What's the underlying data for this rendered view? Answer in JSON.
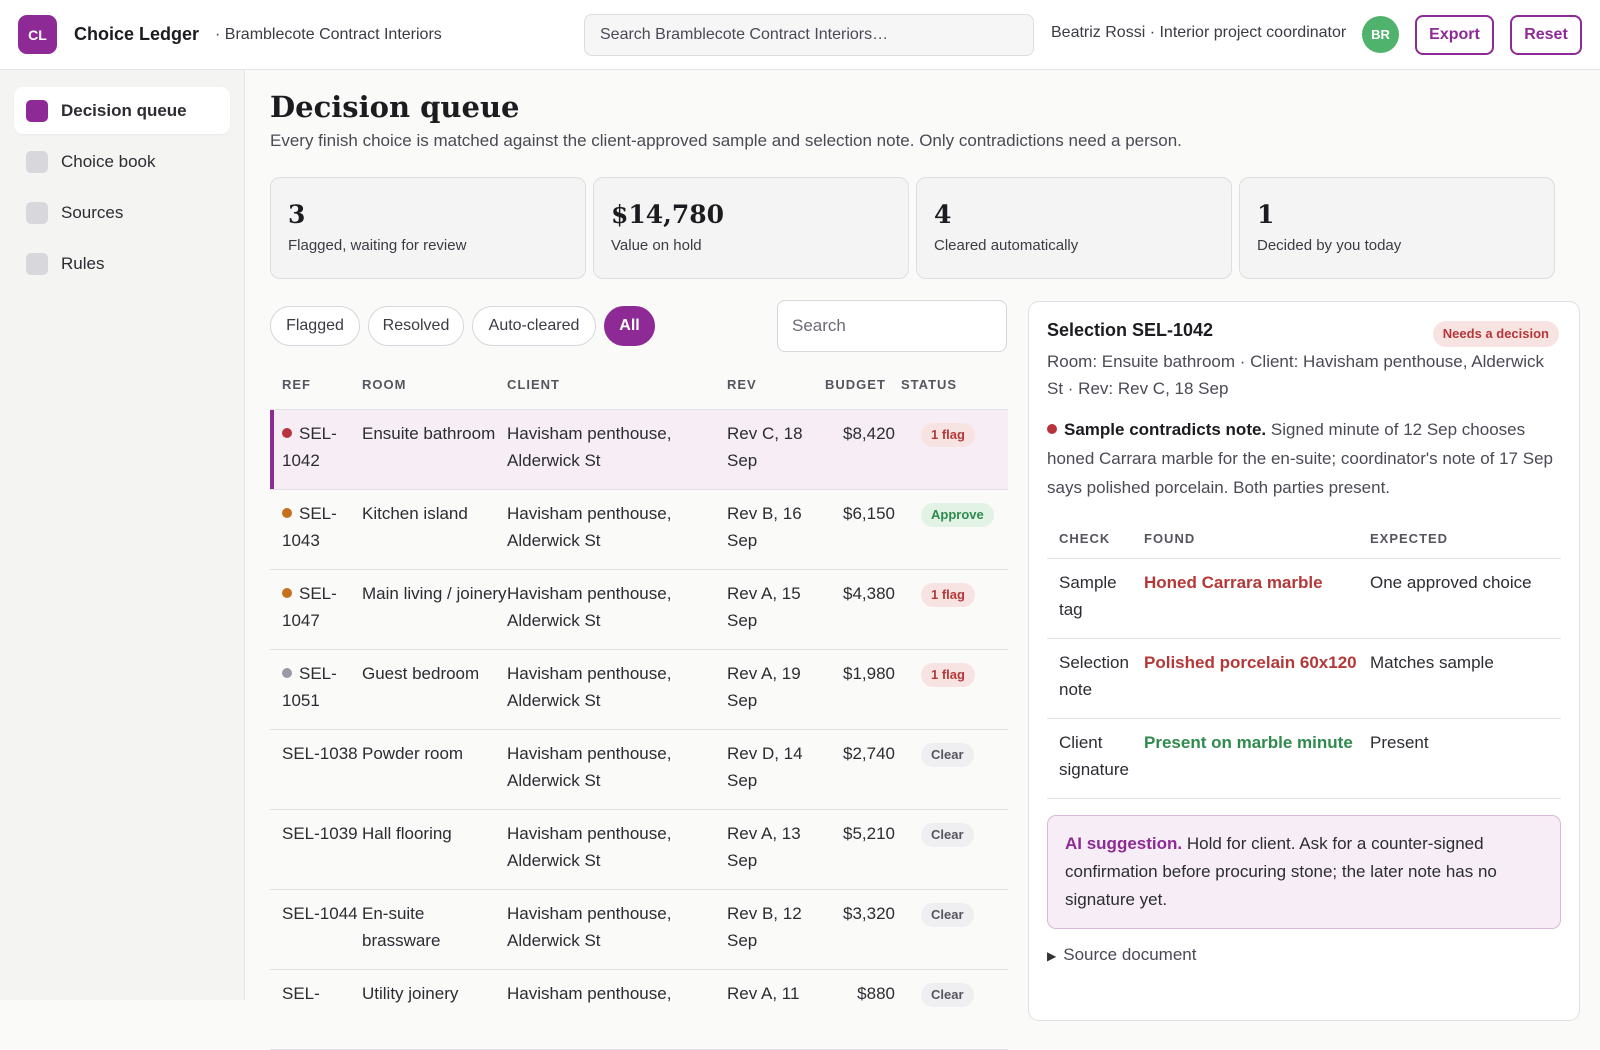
{
  "app": {
    "logo": "CL",
    "title": "Choice Ledger",
    "org": "· Bramblecote Contract Interiors",
    "search_placeholder": "Search Bramblecote Contract Interiors…",
    "user": "Beatriz Rossi · Interior project coordinator",
    "avatar": "BR",
    "export_label": "Export",
    "reset_label": "Reset",
    "accent": "#8e2a96"
  },
  "sidebar": {
    "items": [
      {
        "label": "Decision queue",
        "active": true
      },
      {
        "label": "Choice book"
      },
      {
        "label": "Sources"
      },
      {
        "label": "Rules"
      }
    ]
  },
  "page": {
    "title": "Decision queue",
    "subtitle": "Every finish choice is matched against the client-approved sample and selection note. Only contradictions need a person."
  },
  "stats": [
    {
      "value": "3",
      "label": "Flagged, waiting for review"
    },
    {
      "value": "$14,780",
      "label": "Value on hold"
    },
    {
      "value": "4",
      "label": "Cleared automatically"
    },
    {
      "value": "1",
      "label": "Decided by you today"
    }
  ],
  "filters": {
    "chips": [
      "Flagged",
      "Resolved",
      "Auto-cleared",
      "All"
    ],
    "active": "All",
    "search_placeholder": "Search"
  },
  "table": {
    "headers": {
      "ref": "REF",
      "room": "ROOM",
      "client": "CLIENT",
      "rev": "REV",
      "budget": "BUDGET",
      "status": "STATUS"
    },
    "rows": [
      {
        "ref": "SEL-1042",
        "dot": "#b8343c",
        "room": "Ensuite bathroom",
        "client": "Havisham penthouse, Alderwick St",
        "rev": "Rev C, 18 Sep",
        "budget": "$8,420",
        "status": "1 flag",
        "status_kind": "flag",
        "selected": true
      },
      {
        "ref": "SEL-1043",
        "dot": "#c4701e",
        "room": "Kitchen island",
        "client": "Havisham penthouse, Alderwick St",
        "rev": "Rev B, 16 Sep",
        "budget": "$6,150",
        "status": "Approve",
        "status_kind": "approve"
      },
      {
        "ref": "SEL-1047",
        "dot": "#c4701e",
        "room": "Main living / joinery",
        "client": "Havisham penthouse, Alderwick St",
        "rev": "Rev A, 15 Sep",
        "budget": "$4,380",
        "status": "1 flag",
        "status_kind": "flag"
      },
      {
        "ref": "SEL-1051",
        "dot": "#9a9aa6",
        "room": "Guest bedroom",
        "client": "Havisham penthouse, Alderwick St",
        "rev": "Rev A, 19 Sep",
        "budget": "$1,980",
        "status": "1 flag",
        "status_kind": "flag"
      },
      {
        "ref": "SEL-1038",
        "room": "Powder room",
        "client": "Havisham penthouse, Alderwick St",
        "rev": "Rev D, 14 Sep",
        "budget": "$2,740",
        "status": "Clear",
        "status_kind": "clear"
      },
      {
        "ref": "SEL-1039",
        "room": "Hall flooring",
        "client": "Havisham penthouse, Alderwick St",
        "rev": "Rev A, 13 Sep",
        "budget": "$5,210",
        "status": "Clear",
        "status_kind": "clear"
      },
      {
        "ref": "SEL-1044",
        "room": "En-suite brassware",
        "client": "Havisham penthouse, Alderwick St",
        "rev": "Rev B, 12 Sep",
        "budget": "$3,320",
        "status": "Clear",
        "status_kind": "clear"
      },
      {
        "ref": "SEL-",
        "room": "Utility joinery",
        "client": "Havisham penthouse,",
        "rev": "Rev A, 11",
        "budget": "$880",
        "status": "Clear",
        "status_kind": "clear"
      }
    ]
  },
  "status_colors": {
    "flag": {
      "bg": "#f8e3e3",
      "fg": "#b53838"
    },
    "approve": {
      "bg": "#e2f3e6",
      "fg": "#2f8a4d"
    },
    "clear": {
      "bg": "#efeff1",
      "fg": "#55555f"
    }
  },
  "detail": {
    "title": "Selection SEL-1042",
    "badge": "Needs a decision",
    "meta": "Room: Ensuite bathroom · Client: Havisham penthouse, Alderwick St · Rev: Rev C, 18 Sep",
    "note_heading": "Sample contradicts note.",
    "note_body": " Signed minute of 12 Sep chooses honed Carrara marble for the en-suite; coordinator's note of 17 Sep says polished porcelain. Both parties present.",
    "check_headers": {
      "check": "CHECK",
      "found": "FOUND",
      "expected": "EXPECTED"
    },
    "checks": [
      {
        "check": "Sample tag",
        "found": "Honed Carrara marble",
        "expected": "One approved choice",
        "found_color": "#b53838"
      },
      {
        "check": "Selection note",
        "found": "Polished porcelain 60x120",
        "expected": "Matches sample",
        "found_color": "#b53838"
      },
      {
        "check": "Client signature",
        "found": "Present on marble minute",
        "expected": "Present",
        "found_color": "#2f8a4d"
      }
    ],
    "ai_heading": "AI suggestion.",
    "ai_body": " Hold for client. Ask for a counter-signed confirmation before procuring stone; the later note has no signature yet.",
    "source_label": "Source document"
  }
}
